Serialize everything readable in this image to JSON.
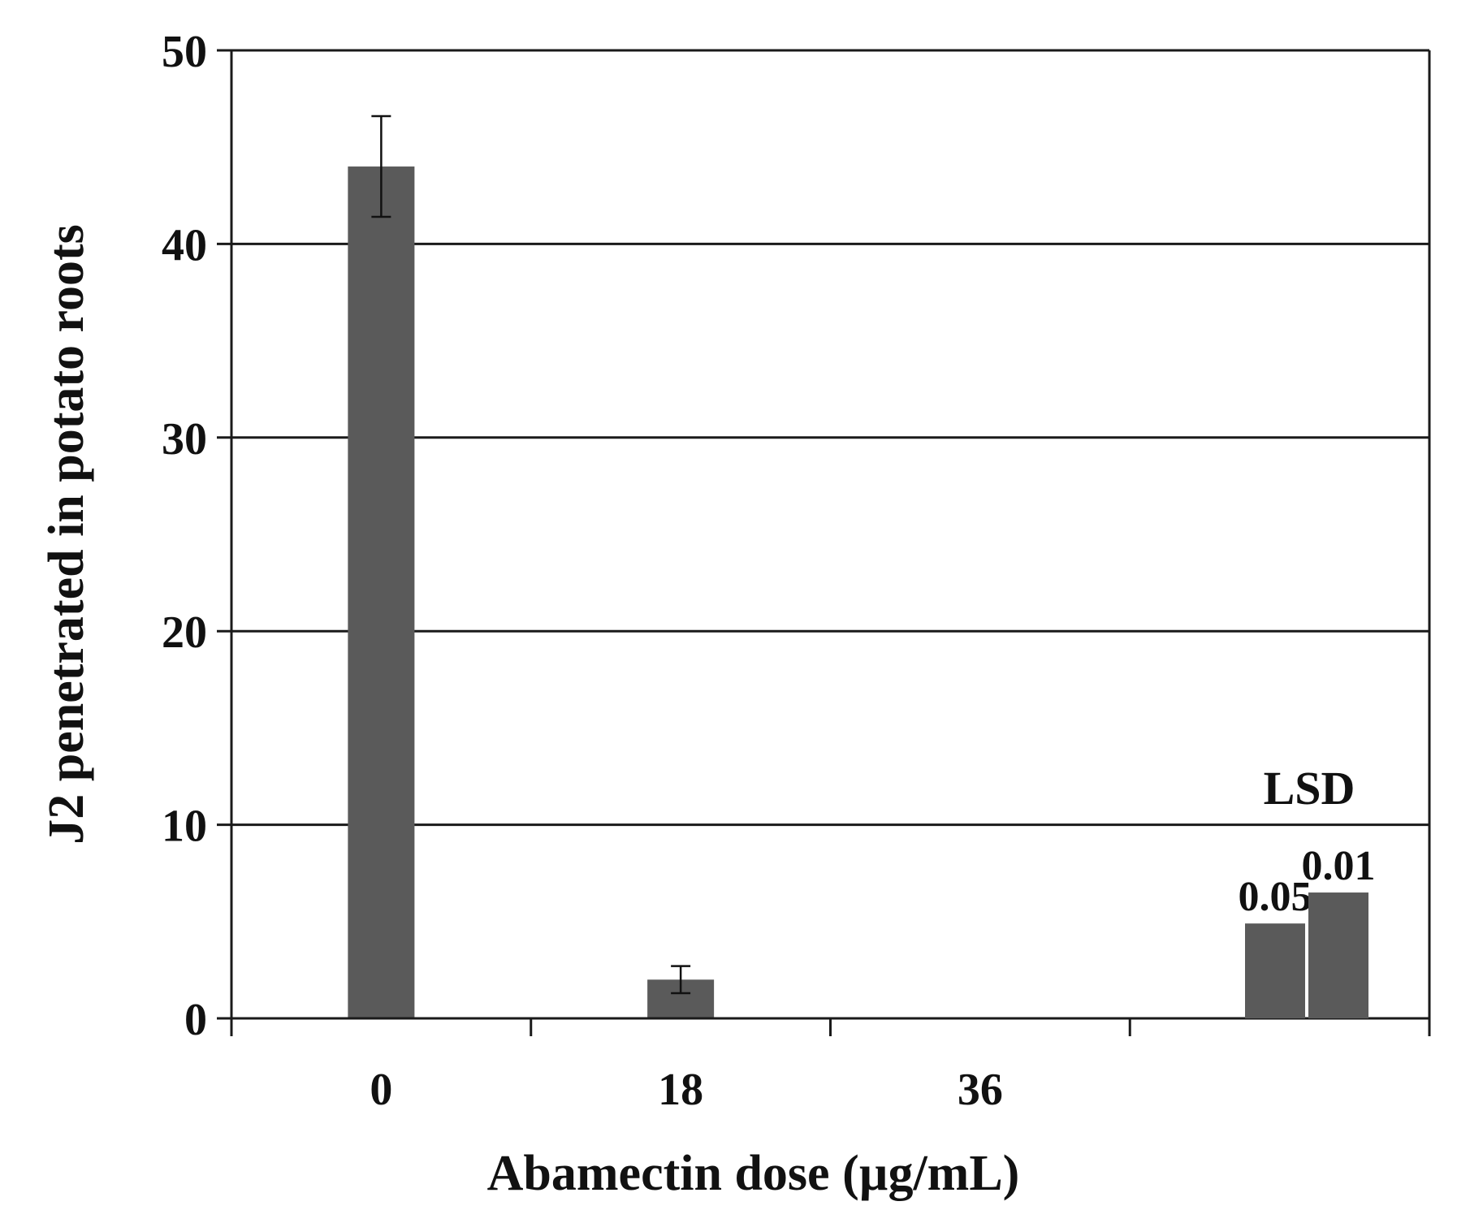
{
  "chart_data": {
    "type": "bar",
    "title": "",
    "xlabel": "Abamectin dose (µg/mL)",
    "ylabel": "J2 penetrated in potato roots",
    "ylim": [
      0,
      50
    ],
    "yticks": [
      "0",
      "10",
      "20",
      "30",
      "40",
      "50"
    ],
    "grid": true,
    "categories": [
      "0",
      "18",
      "36"
    ],
    "values": [
      44.0,
      2.0,
      0.0
    ],
    "error_bars": [
      2.6,
      0.7,
      0.0
    ],
    "lsd": {
      "label": "LSD",
      "entries": [
        {
          "label": "0.05",
          "value": 4.9
        },
        {
          "label": "0.01",
          "value": 6.5
        }
      ]
    },
    "colors": {
      "bar": "#5a5a5a",
      "axis": "#1a1a1a"
    }
  }
}
